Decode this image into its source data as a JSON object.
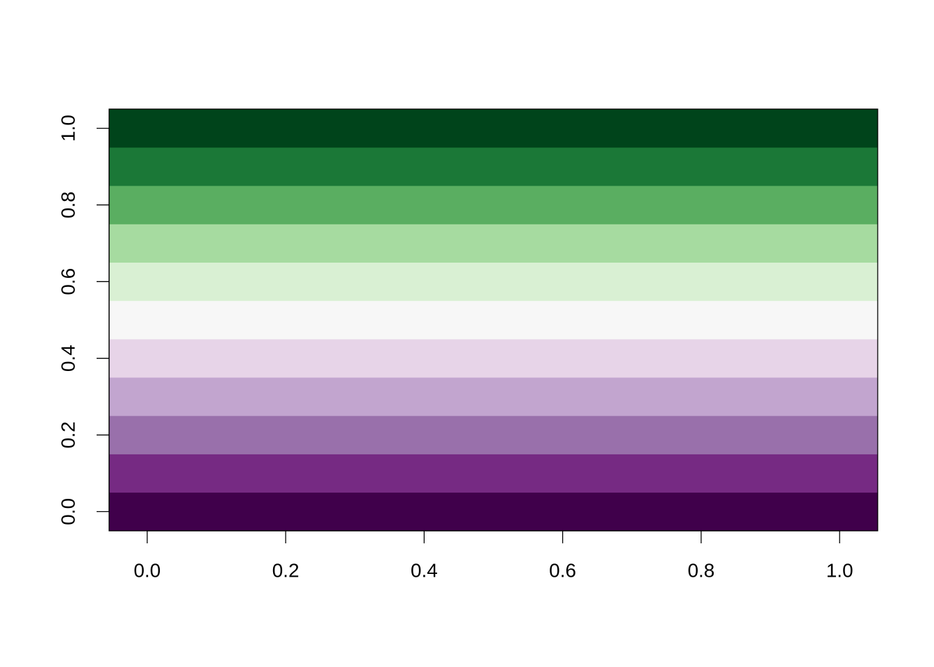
{
  "chart_data": {
    "type": "heatmap",
    "y": [
      0,
      0.1,
      0.2,
      0.3,
      0.4,
      0.5,
      0.6,
      0.7,
      0.8,
      0.9,
      1.0
    ],
    "colors": [
      "#40004B",
      "#762A83",
      "#9970AB",
      "#C2A5CF",
      "#E7D4E8",
      "#F7F7F7",
      "#D9F0D3",
      "#A6DBA0",
      "#5AAE61",
      "#1B7837",
      "#00441B"
    ],
    "xlim": [
      -0.055,
      1.055
    ],
    "ylim": [
      -0.05,
      1.05
    ],
    "xticks": [
      {
        "value": 0,
        "label": "0.0"
      },
      0.2,
      0.4,
      0.6,
      0.8,
      {
        "value": 1,
        "label": "1.0"
      }
    ],
    "yticks": [
      {
        "value": 0,
        "label": "0.0"
      },
      0.2,
      0.4,
      0.6,
      0.8,
      {
        "value": 1,
        "label": "1.0"
      }
    ]
  }
}
